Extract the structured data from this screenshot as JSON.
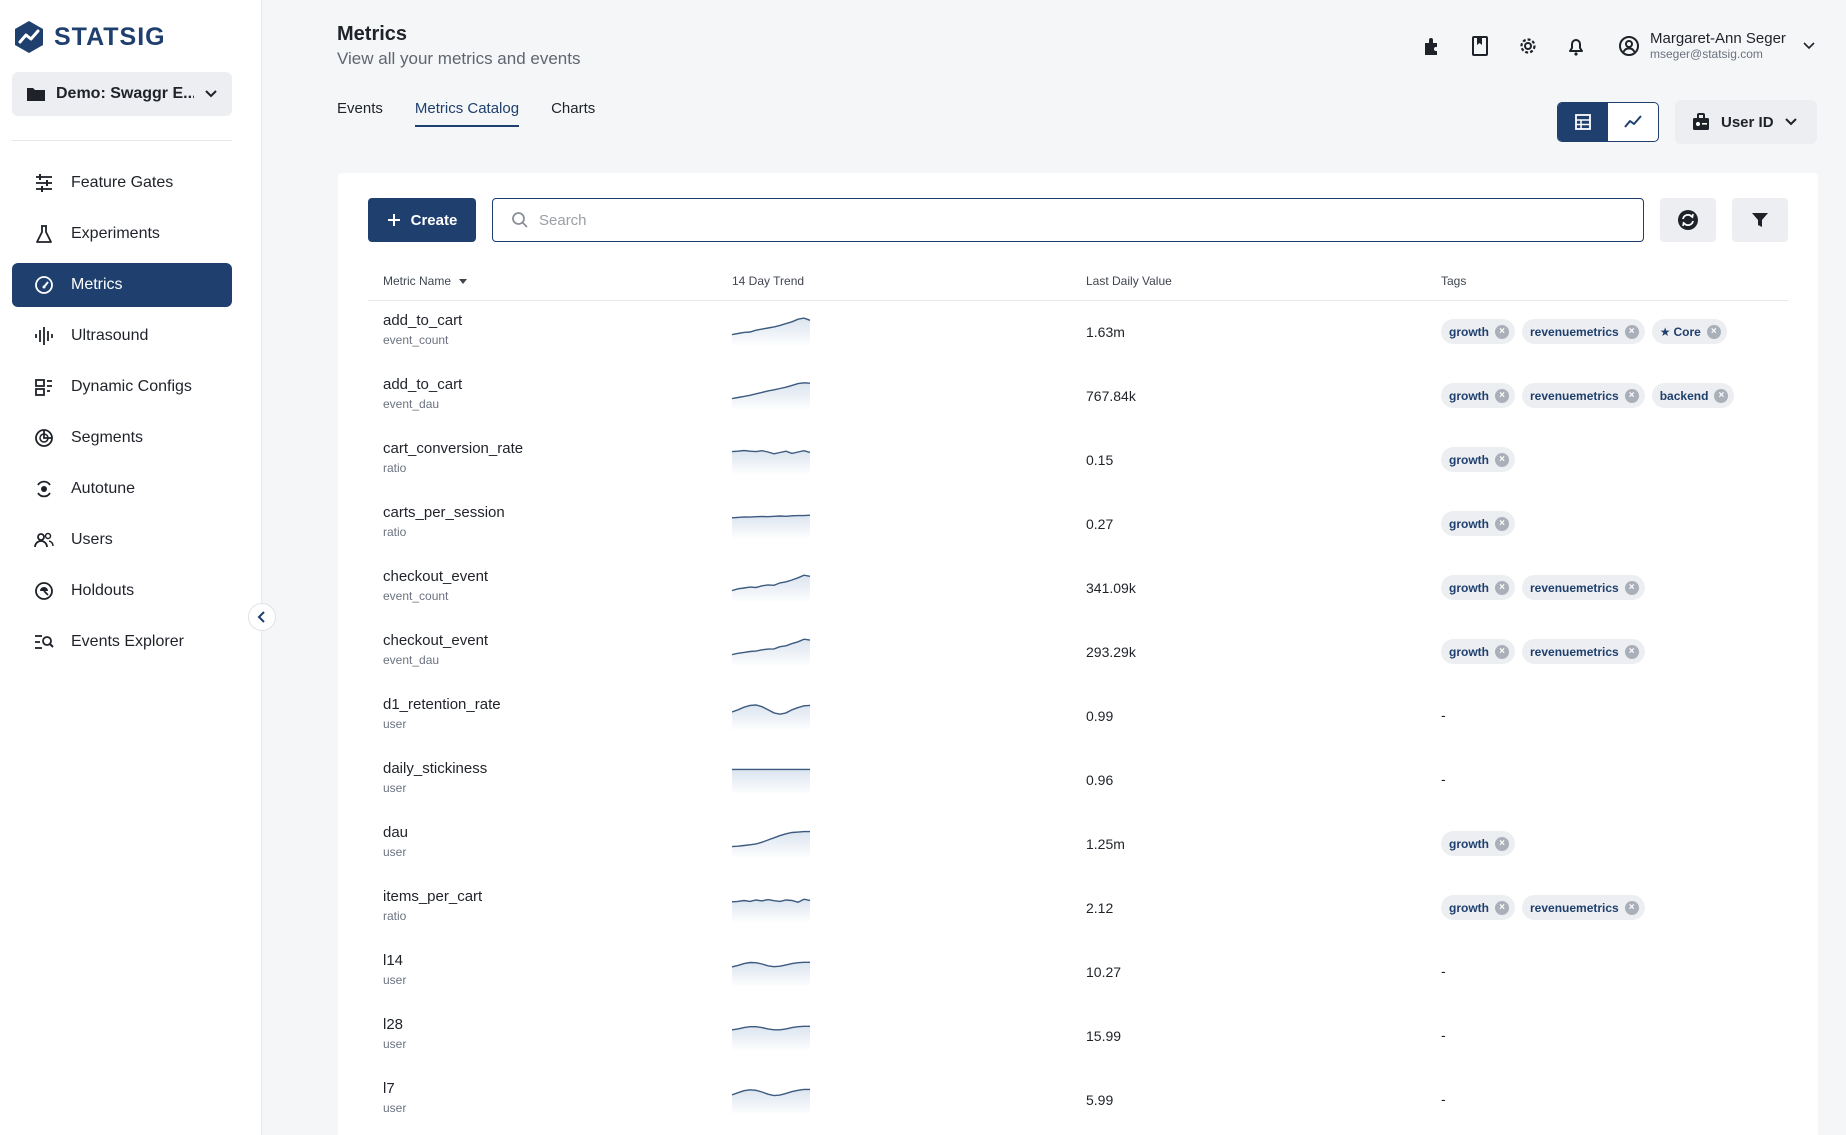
{
  "app": {
    "logo_text": "STATSIG"
  },
  "sidebar": {
    "project": "Demo: Swaggr E...",
    "items": [
      {
        "label": "Feature Gates",
        "icon": "sliders-icon",
        "active": false
      },
      {
        "label": "Experiments",
        "icon": "flask-icon",
        "active": false
      },
      {
        "label": "Metrics",
        "icon": "gauge-icon",
        "active": true
      },
      {
        "label": "Ultrasound",
        "icon": "soundwave-icon",
        "active": false
      },
      {
        "label": "Dynamic Configs",
        "icon": "config-icon",
        "active": false
      },
      {
        "label": "Segments",
        "icon": "segments-icon",
        "active": false
      },
      {
        "label": "Autotune",
        "icon": "autotune-icon",
        "active": false
      },
      {
        "label": "Users",
        "icon": "users-icon",
        "active": false
      },
      {
        "label": "Holdouts",
        "icon": "holdouts-icon",
        "active": false
      },
      {
        "label": "Events Explorer",
        "icon": "explorer-icon",
        "active": false
      }
    ]
  },
  "header": {
    "title": "Metrics",
    "subtitle": "View all your metrics and events",
    "user_name": "Margaret-Ann Seger",
    "user_email": "mseger@statsig.com"
  },
  "tabs": [
    {
      "label": "Events",
      "active": false
    },
    {
      "label": "Metrics Catalog",
      "active": true
    },
    {
      "label": "Charts",
      "active": false
    }
  ],
  "id_type": "User ID",
  "toolbar": {
    "create_label": "Create",
    "search_placeholder": "Search"
  },
  "table": {
    "columns": [
      "Metric Name",
      "14 Day Trend",
      "Last Daily Value",
      "Tags"
    ],
    "rows": [
      {
        "name": "add_to_cart",
        "type": "event_count",
        "value": "1.63m",
        "trend": [
          0.2,
          0.25,
          0.3,
          0.32,
          0.4,
          0.45,
          0.5,
          0.55,
          0.62,
          0.7,
          0.78,
          0.9,
          0.95,
          0.85
        ],
        "tags": [
          {
            "label": "growth",
            "starred": false
          },
          {
            "label": "revenuemetrics",
            "starred": false
          },
          {
            "label": "Core",
            "starred": true
          }
        ]
      },
      {
        "name": "add_to_cart",
        "type": "event_dau",
        "value": "767.84k",
        "trend": [
          0.2,
          0.25,
          0.3,
          0.35,
          0.42,
          0.48,
          0.55,
          0.6,
          0.66,
          0.72,
          0.8,
          0.88,
          0.92,
          0.9
        ],
        "tags": [
          {
            "label": "growth",
            "starred": false
          },
          {
            "label": "revenuemetrics",
            "starred": false
          },
          {
            "label": "backend",
            "starred": false
          }
        ]
      },
      {
        "name": "cart_conversion_rate",
        "type": "ratio",
        "value": "0.15",
        "trend": [
          0.7,
          0.72,
          0.75,
          0.72,
          0.7,
          0.74,
          0.68,
          0.6,
          0.66,
          0.72,
          0.62,
          0.68,
          0.74,
          0.66
        ],
        "tags": [
          {
            "label": "growth",
            "starred": false
          }
        ]
      },
      {
        "name": "carts_per_session",
        "type": "ratio",
        "value": "0.27",
        "trend": [
          0.6,
          0.62,
          0.64,
          0.63,
          0.65,
          0.66,
          0.65,
          0.67,
          0.68,
          0.67,
          0.69,
          0.7,
          0.7,
          0.72
        ],
        "tags": [
          {
            "label": "growth",
            "starred": false
          }
        ]
      },
      {
        "name": "checkout_event",
        "type": "event_count",
        "value": "341.09k",
        "trend": [
          0.2,
          0.28,
          0.32,
          0.36,
          0.34,
          0.42,
          0.46,
          0.44,
          0.55,
          0.6,
          0.68,
          0.78,
          0.9,
          0.85
        ],
        "tags": [
          {
            "label": "growth",
            "starred": false
          },
          {
            "label": "revenuemetrics",
            "starred": false
          }
        ]
      },
      {
        "name": "checkout_event",
        "type": "event_dau",
        "value": "293.29k",
        "trend": [
          0.2,
          0.26,
          0.3,
          0.34,
          0.36,
          0.42,
          0.45,
          0.46,
          0.56,
          0.6,
          0.7,
          0.78,
          0.9,
          0.86
        ],
        "tags": [
          {
            "label": "growth",
            "starred": false
          },
          {
            "label": "revenuemetrics",
            "starred": false
          }
        ]
      },
      {
        "name": "d1_retention_rate",
        "type": "user",
        "value": "0.99",
        "trend": [
          0.5,
          0.6,
          0.72,
          0.8,
          0.82,
          0.74,
          0.6,
          0.46,
          0.4,
          0.46,
          0.6,
          0.7,
          0.78,
          0.8
        ],
        "tags": []
      },
      {
        "name": "daily_stickiness",
        "type": "user",
        "value": "0.96",
        "trend": [
          0.8,
          0.8,
          0.8,
          0.8,
          0.8,
          0.8,
          0.8,
          0.8,
          0.8,
          0.8,
          0.8,
          0.8,
          0.8,
          0.8
        ],
        "tags": []
      },
      {
        "name": "dau",
        "type": "user",
        "value": "1.25m",
        "trend": [
          0.2,
          0.22,
          0.25,
          0.28,
          0.32,
          0.4,
          0.5,
          0.6,
          0.7,
          0.78,
          0.84,
          0.86,
          0.88,
          0.88
        ],
        "tags": [
          {
            "label": "growth",
            "starred": false
          }
        ]
      },
      {
        "name": "items_per_cart",
        "type": "ratio",
        "value": "2.12",
        "trend": [
          0.6,
          0.62,
          0.66,
          0.62,
          0.68,
          0.64,
          0.7,
          0.65,
          0.62,
          0.68,
          0.66,
          0.58,
          0.72,
          0.66
        ],
        "tags": [
          {
            "label": "growth",
            "starred": false
          },
          {
            "label": "revenuemetrics",
            "starred": false
          }
        ]
      },
      {
        "name": "l14",
        "type": "user",
        "value": "10.27",
        "trend": [
          0.55,
          0.62,
          0.7,
          0.75,
          0.74,
          0.68,
          0.6,
          0.56,
          0.58,
          0.64,
          0.7,
          0.74,
          0.76,
          0.76
        ],
        "tags": []
      },
      {
        "name": "l28",
        "type": "user",
        "value": "15.99",
        "trend": [
          0.6,
          0.64,
          0.7,
          0.74,
          0.74,
          0.7,
          0.64,
          0.6,
          0.6,
          0.64,
          0.7,
          0.74,
          0.76,
          0.76
        ],
        "tags": []
      },
      {
        "name": "l7",
        "type": "user",
        "value": "5.99",
        "trend": [
          0.55,
          0.65,
          0.74,
          0.78,
          0.76,
          0.68,
          0.58,
          0.52,
          0.54,
          0.62,
          0.7,
          0.76,
          0.8,
          0.8
        ],
        "tags": []
      }
    ]
  },
  "colors": {
    "primary": "#1f3f6e",
    "tag_bg": "#eceef1",
    "trend_line": "#3d5a80",
    "trend_fill": "#dbe4ef"
  }
}
